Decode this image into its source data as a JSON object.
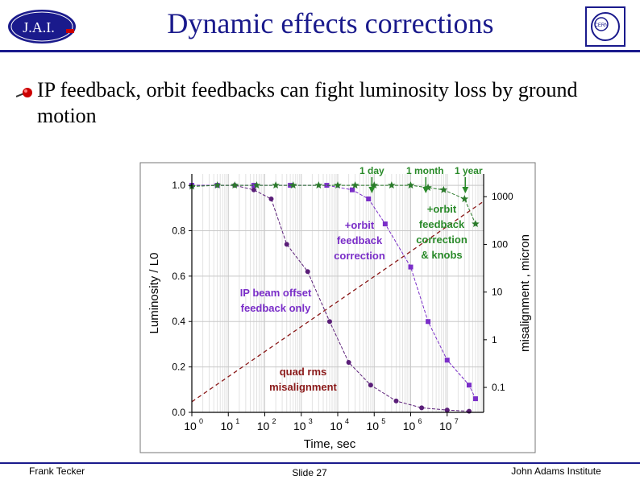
{
  "slide": {
    "title": "Dynamic effects corrections",
    "logo_left_text": "J.A.I.",
    "logo_right_text": "CERN",
    "bullet": "IP feedback, orbit feedbacks can fight luminosity loss by ground motion",
    "footer_left": "Frank Tecker",
    "footer_center": "Slide 27",
    "footer_right": "John Adams Institute",
    "colors": {
      "title": "#1a1a8c",
      "accent_red": "#cc0000"
    }
  },
  "chart_data": {
    "type": "line",
    "x_scale": "log",
    "xlim": [
      1,
      100000000
    ],
    "ylim": [
      0,
      1.05
    ],
    "xlabel": "Time, sec",
    "ylabel": "Luminosity / L0",
    "y2label": "misalignment , micron",
    "x_ticks": [
      {
        "value": 1,
        "label": "10",
        "exp": "0"
      },
      {
        "value": 10,
        "label": "10",
        "exp": "1"
      },
      {
        "value": 100,
        "label": "10",
        "exp": "2"
      },
      {
        "value": 1000,
        "label": "10",
        "exp": "3"
      },
      {
        "value": 10000,
        "label": "10",
        "exp": "4"
      },
      {
        "value": 100000,
        "label": "10",
        "exp": "5"
      },
      {
        "value": 1000000,
        "label": "10",
        "exp": "6"
      },
      {
        "value": 10000000,
        "label": "10",
        "exp": "7"
      }
    ],
    "y_ticks": [
      "0.0",
      "0.2",
      "0.4",
      "0.6",
      "0.8",
      "1.0"
    ],
    "y2_ticks": [
      {
        "value": 0.1,
        "label": "0.1"
      },
      {
        "value": 1,
        "label": "1"
      },
      {
        "value": 10,
        "label": "10"
      },
      {
        "value": 100,
        "label": "100"
      },
      {
        "value": 1000,
        "label": "1000"
      }
    ],
    "y2_scale": "log",
    "y2lim": [
      0.03,
      3000
    ],
    "grid": true,
    "series": [
      {
        "name": "IP beam offset feedback only",
        "color": "#5a1e78",
        "marker": "circle",
        "x": [
          1,
          5,
          15,
          50,
          150,
          400,
          1500,
          6000,
          20000,
          80000,
          400000,
          2000000,
          10000000,
          40000000
        ],
        "y": [
          1.0,
          1.0,
          1.0,
          0.98,
          0.94,
          0.74,
          0.62,
          0.4,
          0.22,
          0.12,
          0.05,
          0.02,
          0.01,
          0.005
        ]
      },
      {
        "name": "+orbit feedback correction",
        "color": "#7a2ec8",
        "marker": "square",
        "x": [
          1,
          5,
          50,
          500,
          5000,
          25000,
          70000,
          200000,
          1000000,
          3000000,
          10000000,
          40000000,
          60000000
        ],
        "y": [
          1.0,
          1.0,
          1.0,
          1.0,
          1.0,
          0.98,
          0.94,
          0.83,
          0.64,
          0.4,
          0.23,
          0.12,
          0.06
        ]
      },
      {
        "name": "+orbit feedback correction & knobs",
        "color": "#2a7a2a",
        "marker": "star",
        "x": [
          1,
          5,
          15,
          60,
          200,
          600,
          3000,
          10000,
          30000,
          100000,
          300000,
          1000000,
          3000000,
          8000000,
          30000000,
          60000000
        ],
        "y": [
          0.995,
          1.0,
          1.0,
          1.0,
          1.0,
          1.0,
          1.0,
          1.0,
          1.0,
          1.0,
          1.0,
          1.0,
          0.99,
          0.98,
          0.94,
          0.83
        ]
      },
      {
        "name": "quad rms misalignment",
        "color": "#8b1a1a",
        "dashed": true,
        "y_axis": "right",
        "x": [
          1,
          100000000
        ],
        "y2": [
          0.05,
          800
        ]
      }
    ],
    "annotations": [
      {
        "text": "1 day",
        "x": 86400,
        "color": "#2a8a2a"
      },
      {
        "text": "1 month",
        "x": 2600000,
        "color": "#2a8a2a"
      },
      {
        "text": "1 year",
        "x": 31500000,
        "color": "#2a8a2a"
      }
    ],
    "series_labels": [
      {
        "lines": [
          "IP beam offset",
          "feedback only"
        ],
        "color": "#7a2ec8"
      },
      {
        "lines": [
          "+orbit",
          "feedback",
          "correction"
        ],
        "color": "#7a2ec8"
      },
      {
        "lines": [
          "+orbit",
          "feedback",
          "correction",
          "& knobs"
        ],
        "color": "#2a8a2a"
      },
      {
        "lines": [
          "quad rms",
          "misalignment"
        ],
        "color": "#8b1a1a"
      }
    ]
  }
}
